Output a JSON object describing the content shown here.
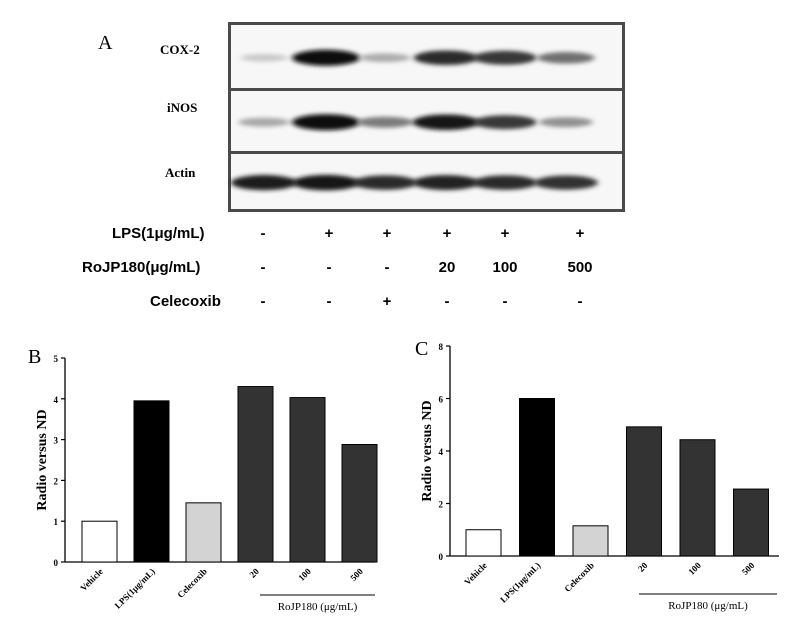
{
  "panel_a": {
    "letter": "A",
    "rows": [
      {
        "label": "COX-2",
        "intensity": [
          0.15,
          1.0,
          0.28,
          0.85,
          0.8,
          0.55
        ]
      },
      {
        "label": "iNOS",
        "intensity": [
          0.3,
          1.0,
          0.5,
          0.95,
          0.8,
          0.4
        ]
      },
      {
        "label": "Actin",
        "intensity": [
          0.92,
          0.95,
          0.85,
          0.9,
          0.85,
          0.82
        ]
      }
    ],
    "treatments": [
      {
        "label": "LPS(1μg/mL)",
        "values": [
          "-",
          "+",
          "+",
          "+",
          "+",
          "+"
        ]
      },
      {
        "label": "RoJP180(μg/mL)",
        "values": [
          "-",
          "-",
          "-",
          "20",
          "100",
          "500"
        ]
      },
      {
        "label": "Celecoxib",
        "values": [
          "-",
          "-",
          "+",
          "-",
          "-",
          "-"
        ]
      }
    ]
  },
  "chart_data": [
    {
      "panel": "B",
      "type": "bar",
      "categories": [
        "Vehicle",
        "LPS(1μg/mL)",
        "Celecoxib",
        "20",
        "100",
        "500"
      ],
      "values": [
        1.0,
        3.95,
        1.45,
        4.3,
        4.03,
        2.88
      ],
      "colors": [
        "#ffffff",
        "#000000",
        "#d3d3d3",
        "#333333",
        "#333333",
        "#333333"
      ],
      "ylabel": "Radio versus ND",
      "ylim": [
        0,
        5
      ],
      "yticks": [
        "0",
        "1",
        "2",
        "3",
        "4",
        "5"
      ],
      "group_label": "RoJP180 (μg/mL)",
      "grid": false
    },
    {
      "panel": "C",
      "type": "bar",
      "categories": [
        "Vehicle",
        "LPS(1μg/mL)",
        "Celecoxib",
        "20",
        "100",
        "500"
      ],
      "values": [
        1.0,
        6.0,
        1.15,
        4.92,
        4.43,
        2.55
      ],
      "colors": [
        "#ffffff",
        "#000000",
        "#d3d3d3",
        "#333333",
        "#333333",
        "#333333"
      ],
      "ylabel": "Radio versus ND",
      "ylim": [
        0,
        8
      ],
      "yticks": [
        "0",
        "2",
        "4",
        "6",
        "8"
      ],
      "group_label": "RoJP180 (μg/mL)",
      "grid": false
    }
  ]
}
